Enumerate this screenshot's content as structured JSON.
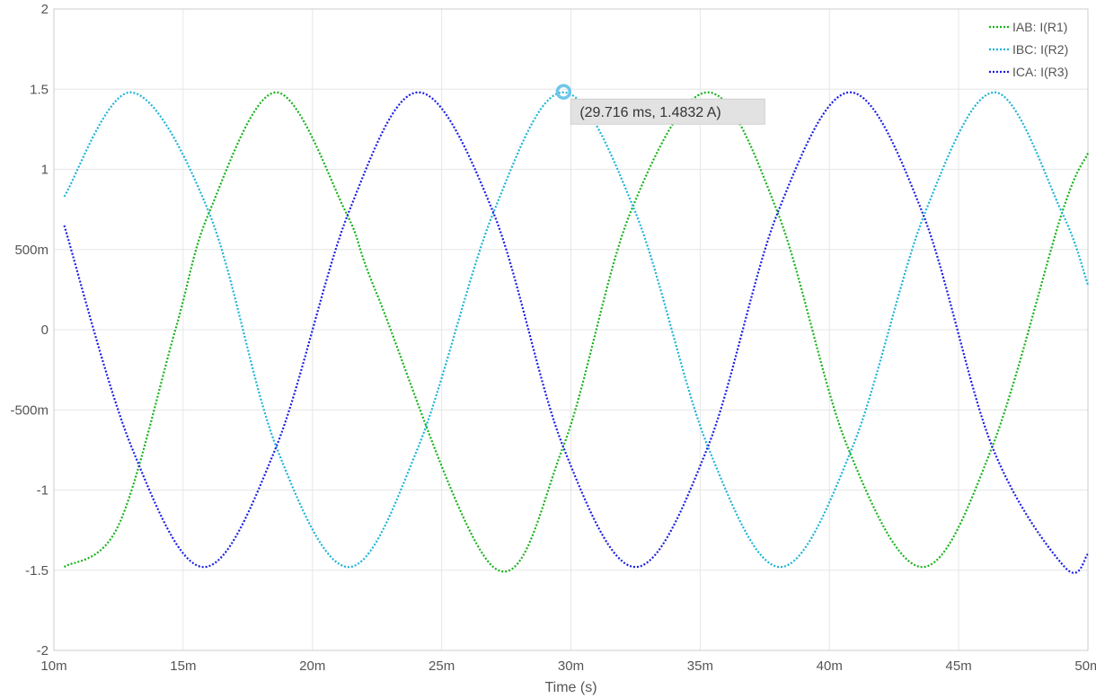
{
  "chart_data": {
    "type": "line",
    "xlabel": "Time (s)",
    "ylabel": "",
    "xlim": [
      0.01,
      0.05
    ],
    "ylim": [
      -2,
      2
    ],
    "x_ticks": [
      {
        "value": 0.01,
        "label": "10m"
      },
      {
        "value": 0.015,
        "label": "15m"
      },
      {
        "value": 0.02,
        "label": "20m"
      },
      {
        "value": 0.025,
        "label": "25m"
      },
      {
        "value": 0.03,
        "label": "30m"
      },
      {
        "value": 0.035,
        "label": "35m"
      },
      {
        "value": 0.04,
        "label": "40m"
      },
      {
        "value": 0.045,
        "label": "45m"
      },
      {
        "value": 0.05,
        "label": "50m"
      }
    ],
    "y_ticks": [
      {
        "value": 2,
        "label": "2"
      },
      {
        "value": 1.5,
        "label": "1.5"
      },
      {
        "value": 1,
        "label": "1"
      },
      {
        "value": 0.5,
        "label": "500m"
      },
      {
        "value": 0,
        "label": "0"
      },
      {
        "value": -0.5,
        "label": "-500m"
      },
      {
        "value": -1,
        "label": "-1"
      },
      {
        "value": -1.5,
        "label": "-1.5"
      },
      {
        "value": -2,
        "label": "-2"
      }
    ],
    "grid": true,
    "legend_position": "top-right",
    "line_style": "dotted",
    "series": [
      {
        "name": "IAB: I(R1)",
        "color": "#17b31a",
        "x": [
          0.0104,
          0.0125,
          0.0147,
          0.016,
          0.0186,
          0.0213,
          0.0225,
          0.027,
          0.0297,
          0.0323,
          0.0353,
          0.038,
          0.0407,
          0.0436,
          0.0463,
          0.049,
          0.05
        ],
        "y": [
          -1.48,
          -1.22,
          -0.0,
          0.73,
          1.48,
          0.73,
          0.22,
          -1.48,
          -0.73,
          0.73,
          1.48,
          0.73,
          -0.73,
          -1.48,
          -0.73,
          0.73,
          1.1
        ]
      },
      {
        "name": "IBC: I(R2)",
        "color": "#1cb4d7",
        "x": [
          0.0104,
          0.013,
          0.016,
          0.0186,
          0.0214,
          0.0241,
          0.027,
          0.0297,
          0.0325,
          0.0353,
          0.0381,
          0.0409,
          0.0437,
          0.0464,
          0.049,
          0.05
        ],
        "y": [
          0.83,
          1.48,
          0.73,
          -0.73,
          -1.48,
          -0.73,
          0.73,
          1.48,
          0.73,
          -0.73,
          -1.48,
          -0.73,
          0.73,
          1.48,
          0.73,
          0.28
        ]
      },
      {
        "name": "ICA: I(R3)",
        "color": "#1a1ee3",
        "x": [
          0.0104,
          0.013,
          0.0158,
          0.0186,
          0.0214,
          0.0241,
          0.027,
          0.0297,
          0.0325,
          0.0353,
          0.038,
          0.0408,
          0.0436,
          0.0463,
          0.0491,
          0.05
        ],
        "y": [
          0.65,
          -0.73,
          -1.48,
          -0.73,
          0.73,
          1.48,
          0.73,
          -0.73,
          -1.48,
          -0.73,
          0.73,
          1.48,
          0.73,
          -0.73,
          -1.48,
          -1.4
        ]
      }
    ],
    "marker": {
      "series": "IBC: I(R2)",
      "x": 0.029716,
      "y": 1.4832,
      "label": "(29.716 ms, 1.4832 A)"
    }
  }
}
